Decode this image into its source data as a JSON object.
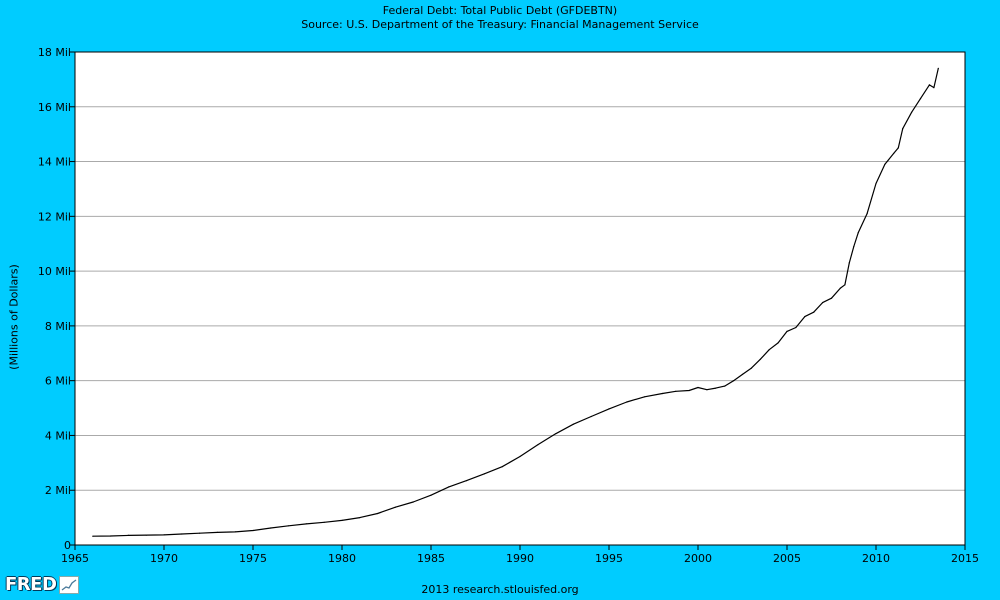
{
  "header": {
    "title": "Federal Debt: Total Public Debt (GFDEBTN)",
    "subtitle": "Source: U.S. Department of the Treasury: Financial Management Service"
  },
  "footer": {
    "credit": "2013 research.stlouisfed.org",
    "logo": "FRED"
  },
  "colors": {
    "background": "#00ccff",
    "plot_area": "#ffffff",
    "grid": "#aaaaaa",
    "line": "#000000"
  },
  "chart_data": {
    "type": "line",
    "title": "Federal Debt: Total Public Debt (GFDEBTN)",
    "subtitle": "Source: U.S. Department of the Treasury: Financial Management Service",
    "xlabel": "",
    "ylabel": "(Millions of Dollars)",
    "xlim": [
      1965,
      2015
    ],
    "ylim": [
      0,
      18000000
    ],
    "x_ticks": [
      1965,
      1970,
      1975,
      1980,
      1985,
      1990,
      1995,
      2000,
      2005,
      2010,
      2015
    ],
    "x_tick_labels": [
      "1965",
      "1970",
      "1975",
      "1980",
      "1985",
      "1990",
      "1995",
      "2000",
      "2005",
      "2010",
      "2015"
    ],
    "y_ticks": [
      0,
      2000000,
      4000000,
      6000000,
      8000000,
      10000000,
      12000000,
      14000000,
      16000000,
      18000000
    ],
    "y_tick_labels": [
      "0",
      "2 Mil",
      "4 Mil",
      "6 Mil",
      "8 Mil",
      "10 Mil",
      "12 Mil",
      "14 Mil",
      "16 Mil",
      "18 Mil"
    ],
    "grid": true,
    "x": [
      1966.0,
      1967.0,
      1968.0,
      1969.0,
      1970.0,
      1971.0,
      1972.0,
      1973.0,
      1974.0,
      1975.0,
      1976.0,
      1977.0,
      1978.0,
      1979.0,
      1980.0,
      1981.0,
      1982.0,
      1983.0,
      1984.0,
      1985.0,
      1986.0,
      1987.0,
      1988.0,
      1989.0,
      1990.0,
      1991.0,
      1992.0,
      1993.0,
      1994.0,
      1995.0,
      1996.0,
      1997.0,
      1998.0,
      1998.75,
      1999.5,
      2000.0,
      2000.5,
      2001.0,
      2001.5,
      2002.0,
      2002.5,
      2003.0,
      2003.5,
      2004.0,
      2004.5,
      2005.0,
      2005.5,
      2006.0,
      2006.5,
      2007.0,
      2007.5,
      2008.0,
      2008.25,
      2008.5,
      2008.75,
      2009.0,
      2009.5,
      2010.0,
      2010.5,
      2011.0,
      2011.25,
      2011.5,
      2012.0,
      2012.5,
      2013.0,
      2013.25,
      2013.5
    ],
    "series": [
      {
        "values": [
          320000,
          330000,
          350000,
          360000,
          370000,
          400000,
          430000,
          460000,
          480000,
          530000,
          620000,
          700000,
          770000,
          830000,
          900000,
          1000000,
          1150000,
          1380000,
          1570000,
          1820000,
          2120000,
          2350000,
          2600000,
          2860000,
          3230000,
          3660000,
          4060000,
          4410000,
          4690000,
          4970000,
          5220000,
          5410000,
          5530000,
          5610000,
          5640000,
          5750000,
          5670000,
          5730000,
          5800000,
          6000000,
          6230000,
          6460000,
          6780000,
          7130000,
          7380000,
          7800000,
          7940000,
          8340000,
          8500000,
          8850000,
          9010000,
          9380000,
          9500000,
          10300000,
          10900000,
          11400000,
          12100000,
          13200000,
          13900000,
          14300000,
          14500000,
          15200000,
          15800000,
          16300000,
          16800000,
          16700000,
          17400000
        ]
      }
    ]
  }
}
